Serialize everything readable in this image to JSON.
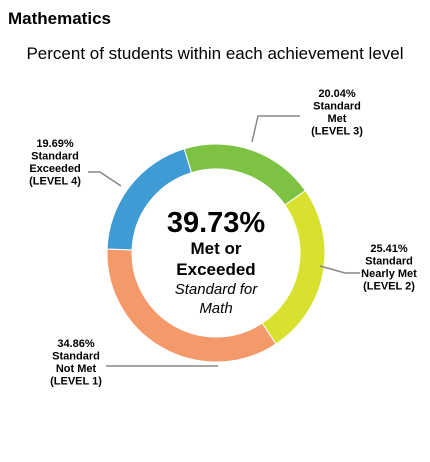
{
  "page": {
    "heading": "Mathematics",
    "subtitle": "Percent of students within each achievement level"
  },
  "chart_data": {
    "type": "pie",
    "title": "Percent of students within each achievement level",
    "center": {
      "value": "39.73%",
      "line1": "Met or",
      "line2": "Exceeded",
      "line3": "Standard for",
      "line4": "Math"
    },
    "slices": [
      {
        "label": "Standard Met (LEVEL 3)",
        "value": 20.04,
        "color": "#7DC242",
        "callout": [
          "20.04%",
          "Standard",
          "Met",
          "(LEVEL 3)"
        ]
      },
      {
        "label": "Standard Nearly Met (LEVEL 2)",
        "value": 25.41,
        "color": "#D7E12E",
        "callout": [
          "25.41%",
          "Standard",
          "Nearly Met",
          "(LEVEL 2)"
        ]
      },
      {
        "label": "Standard Not Met (LEVEL 1)",
        "value": 34.86,
        "color": "#F4996A",
        "callout": [
          "34.86%",
          "Standard",
          "Not Met",
          "(LEVEL 1)"
        ]
      },
      {
        "label": "Standard Exceeded (LEVEL 4)",
        "value": 19.69,
        "color": "#3F9BD4",
        "callout": [
          "19.69%",
          "Standard",
          "Exceeded",
          "(LEVEL 4)"
        ]
      }
    ]
  }
}
